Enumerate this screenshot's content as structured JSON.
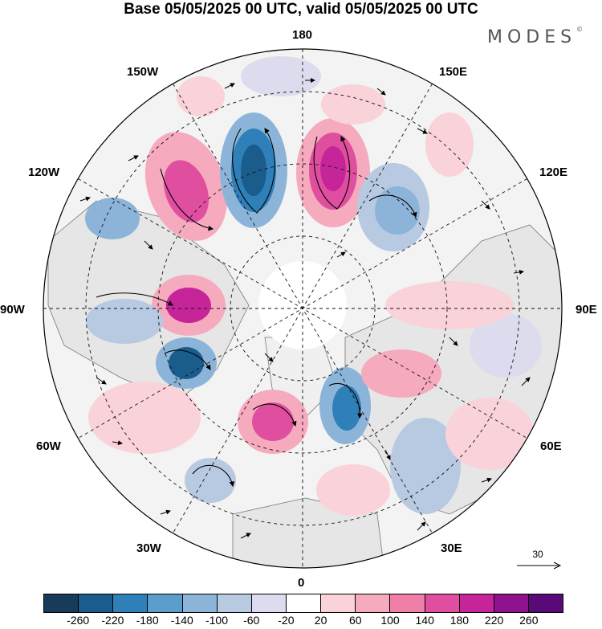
{
  "title": "Base 05/05/2025 00 UTC, valid 05/05/2025 00 UTC",
  "logo": "MODES",
  "logo_mark": "©",
  "map": {
    "projection": "north-polar-stereographic",
    "longitude_labels": {
      "top": "180",
      "upper_left": "150W",
      "upper_right": "150E",
      "left_upper": "120W",
      "right_upper": "120E",
      "left": "90W",
      "right": "90E",
      "left_lower": "60W",
      "right_lower": "60E",
      "lower_left": "30W",
      "lower_right": "30E",
      "bottom": "0"
    },
    "reference_vector_label": "30",
    "colors": {
      "neg_strong": "#1b5e8a",
      "neg_mid": "#5a9cc8",
      "neg_weak": "#b9c9e0",
      "neutral": "#efefef",
      "pos_weak": "#f6c8d0",
      "pos_mid": "#ea7fae",
      "pos_strong": "#c0259a",
      "land": "#e9e9e9"
    }
  },
  "colorbar": {
    "ticks": [
      "-260",
      "-220",
      "-180",
      "-140",
      "-100",
      "-60",
      "-20",
      "20",
      "60",
      "100",
      "140",
      "180",
      "220",
      "260"
    ],
    "colors": [
      "#183b5a",
      "#1a5d8d",
      "#2f80b8",
      "#5a9fcb",
      "#8cb4d8",
      "#b8c9e2",
      "#dcdcee",
      "#ffffff",
      "#f9d3d9",
      "#f5aabd",
      "#ef7fa9",
      "#e04f9f",
      "#c6259a",
      "#8f138c",
      "#5a0a78"
    ]
  }
}
